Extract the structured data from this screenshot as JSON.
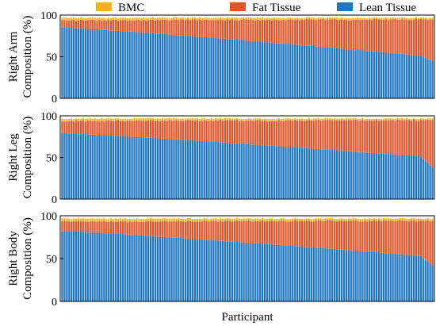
{
  "chart_data": [
    {
      "type": "bar",
      "stacked": true,
      "ylabel_lines": [
        "Right Arm",
        "Composition (%)"
      ],
      "ylim": [
        0,
        100
      ],
      "yticks": [
        0,
        50,
        100
      ],
      "n_participants": 160,
      "series": [
        {
          "name": "Lean Tissue",
          "color": "#1f77c4",
          "start": 85,
          "end": 50,
          "end_drop": 45
        },
        {
          "name": "Fat Tissue",
          "color": "#e0552a"
        },
        {
          "name": "BMC",
          "color": "#f0b41e",
          "start": 3,
          "end": 2
        }
      ]
    },
    {
      "type": "bar",
      "stacked": true,
      "ylabel_lines": [
        "Right Leg",
        "Composition (%)"
      ],
      "ylim": [
        0,
        100
      ],
      "yticks": [
        0,
        50,
        100
      ],
      "n_participants": 160,
      "series": [
        {
          "name": "Lean Tissue",
          "color": "#1f77c4",
          "start": 79,
          "end": 50,
          "end_drop": 38
        },
        {
          "name": "Fat Tissue",
          "color": "#e0552a"
        },
        {
          "name": "BMC",
          "color": "#f0b41e",
          "start": 3,
          "end": 2
        }
      ]
    },
    {
      "type": "bar",
      "stacked": true,
      "ylabel_lines": [
        "Right Body",
        "Composition (%)"
      ],
      "ylim": [
        0,
        100
      ],
      "yticks": [
        0,
        50,
        100
      ],
      "n_participants": 160,
      "series": [
        {
          "name": "Lean Tissue",
          "color": "#1f77c4",
          "start": 82,
          "end": 52,
          "end_drop": 42
        },
        {
          "name": "Fat Tissue",
          "color": "#e0552a"
        },
        {
          "name": "BMC",
          "color": "#f0b41e",
          "start": 3.5,
          "end": 2.5
        }
      ]
    }
  ],
  "legend": {
    "placement": "top",
    "items": [
      {
        "label": "BMC",
        "color": "#f0b41e"
      },
      {
        "label": "Fat Tissue",
        "color": "#e0552a"
      },
      {
        "label": "Lean Tissue",
        "color": "#1f77c4"
      }
    ]
  },
  "xlabel": "Participant"
}
